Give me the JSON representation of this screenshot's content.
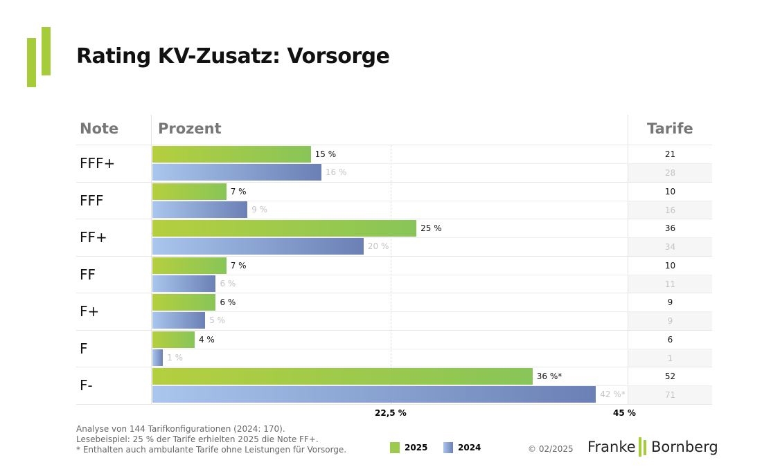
{
  "title": "Rating KV-Zusatz: Vorsorge",
  "colors": {
    "s2025": "#9cca4c",
    "s2024": "#8aa0d2",
    "logo_green": "#a6cc3a"
  },
  "chart_data": {
    "type": "bar",
    "orientation": "horizontal",
    "headers": {
      "note": "Note",
      "prozent": "Prozent",
      "tarife": "Tarife"
    },
    "categories": [
      "FFF+",
      "FFF",
      "FF+",
      "FF",
      "F+",
      "F",
      "F-"
    ],
    "series": [
      {
        "name": "2025",
        "values": [
          15,
          7,
          25,
          7,
          6,
          4,
          36
        ],
        "labels": [
          "15 %",
          "7 %",
          "25 %",
          "7 %",
          "6 %",
          "4 %",
          "36 %*"
        ],
        "tarife": [
          21,
          10,
          36,
          10,
          9,
          6,
          52
        ]
      },
      {
        "name": "2024",
        "values": [
          16,
          9,
          20,
          6,
          5,
          1,
          42
        ],
        "labels": [
          "16 %",
          "9 %",
          "20 %",
          "6 %",
          "5 %",
          "1 %",
          "42 %*"
        ],
        "tarife": [
          28,
          16,
          34,
          11,
          9,
          1,
          71
        ]
      }
    ],
    "xlim": [
      0,
      45
    ],
    "ticks": [
      {
        "value": 22.5,
        "label": "22,5 %"
      },
      {
        "value": 45,
        "label": "45 %"
      }
    ]
  },
  "footer": {
    "lines": [
      "Analyse von 144 Tarifkonfigurationen (2024: 170).",
      "Lesebeispiel: 25 % der Tarife erhielten 2025 die Note FF+.",
      "* Enthalten auch ambulante Tarife ohne Leistungen für Vorsorge."
    ],
    "copyright": "© 02/2025",
    "logo": "Franke | Bornberg"
  }
}
